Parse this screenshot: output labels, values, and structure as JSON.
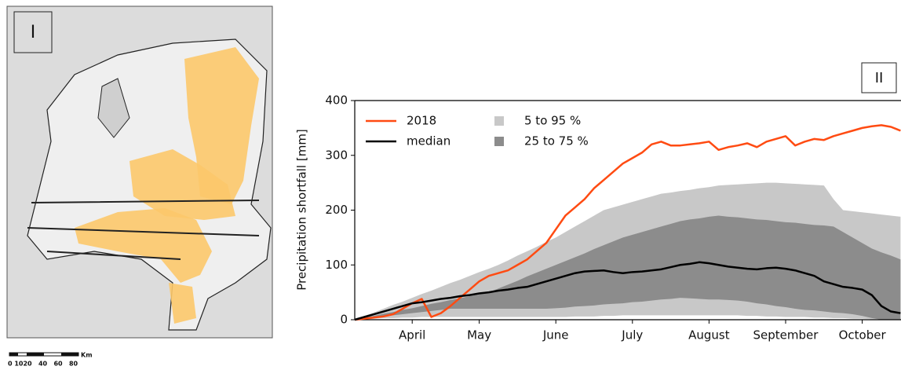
{
  "panel_labels": [
    "I",
    "II"
  ],
  "map": {
    "scale_unit": "Km",
    "scale_numbers": "0 1020   40   60   80"
  },
  "chart_data": {
    "type": "line",
    "ylabel": "Precipitation shortfall [mm]",
    "categories": [
      null,
      null,
      null,
      null,
      null,
      null,
      "April",
      null,
      null,
      null,
      null,
      null,
      null,
      "May",
      null,
      null,
      null,
      null,
      null,
      null,
      null,
      "June",
      null,
      null,
      null,
      null,
      null,
      null,
      null,
      "July",
      null,
      null,
      null,
      null,
      null,
      null,
      null,
      "August",
      null,
      null,
      null,
      null,
      null,
      null,
      null,
      "September",
      null,
      null,
      null,
      null,
      null,
      null,
      null,
      "October",
      null,
      null,
      null,
      null
    ],
    "ylim": [
      0,
      400
    ],
    "yticks": [
      0,
      100,
      200,
      300,
      400
    ],
    "legend": "upper left",
    "series": [
      {
        "name": "2018",
        "color": "#ff4b12",
        "values": [
          0,
          2,
          4,
          6,
          10,
          20,
          30,
          38,
          5,
          12,
          25,
          40,
          55,
          70,
          80,
          85,
          90,
          100,
          110,
          125,
          140,
          165,
          190,
          205,
          220,
          240,
          255,
          270,
          285,
          295,
          305,
          320,
          325,
          318,
          318,
          320,
          322,
          325,
          310,
          315,
          318,
          322,
          315,
          325,
          330,
          335,
          318,
          325,
          330,
          328,
          335,
          340,
          345,
          350,
          353,
          355,
          352,
          345
        ]
      },
      {
        "name": "median",
        "color": "#000000",
        "values": [
          0,
          5,
          10,
          15,
          20,
          25,
          30,
          32,
          35,
          38,
          40,
          43,
          45,
          48,
          50,
          53,
          55,
          58,
          60,
          65,
          70,
          75,
          80,
          85,
          88,
          89,
          90,
          87,
          85,
          87,
          88,
          90,
          92,
          96,
          100,
          102,
          105,
          103,
          100,
          97,
          95,
          93,
          92,
          94,
          95,
          93,
          90,
          85,
          80,
          70,
          65,
          60,
          58,
          55,
          45,
          25,
          15,
          12
        ]
      }
    ],
    "bands": [
      {
        "name": "5 to 95 %",
        "color": "#c8c8c8",
        "lower": [
          0,
          1,
          2,
          3,
          3,
          4,
          4,
          5,
          5,
          5,
          5,
          5,
          5,
          5,
          5,
          5,
          5,
          5,
          5,
          5,
          5,
          5,
          5,
          6,
          6,
          6,
          7,
          7,
          8,
          8,
          8,
          8,
          8,
          8,
          8,
          8,
          8,
          8,
          8,
          8,
          8,
          7,
          7,
          6,
          6,
          5,
          5,
          5,
          4,
          4,
          3,
          3,
          2,
          2,
          1,
          1,
          0,
          0
        ],
        "upper": [
          0,
          7,
          13,
          20,
          27,
          33,
          40,
          47,
          53,
          60,
          67,
          73,
          80,
          87,
          93,
          100,
          108,
          117,
          125,
          133,
          142,
          150,
          160,
          170,
          180,
          190,
          200,
          205,
          210,
          215,
          220,
          225,
          230,
          232,
          235,
          237,
          240,
          242,
          245,
          246,
          247,
          248,
          249,
          250,
          250,
          249,
          248,
          247,
          246,
          245,
          220,
          200,
          198,
          196,
          194,
          192,
          190,
          188
        ]
      },
      {
        "name": "25 to 75 %",
        "color": "#8c8c8c",
        "lower": [
          0,
          2,
          4,
          6,
          8,
          10,
          12,
          14,
          16,
          18,
          20,
          20,
          20,
          20,
          20,
          20,
          20,
          20,
          20,
          20,
          20,
          21,
          22,
          24,
          25,
          26,
          28,
          29,
          30,
          32,
          33,
          35,
          37,
          38,
          40,
          39,
          38,
          37,
          37,
          36,
          35,
          33,
          30,
          28,
          25,
          23,
          20,
          18,
          17,
          15,
          13,
          12,
          10,
          7,
          3,
          0,
          0,
          0
        ],
        "upper": [
          0,
          4,
          7,
          11,
          14,
          18,
          21,
          25,
          29,
          32,
          36,
          39,
          43,
          46,
          50,
          57,
          64,
          71,
          79,
          86,
          93,
          100,
          107,
          114,
          121,
          129,
          136,
          143,
          150,
          155,
          160,
          165,
          170,
          175,
          180,
          183,
          185,
          188,
          190,
          188,
          187,
          185,
          183,
          182,
          180,
          178,
          177,
          175,
          173,
          172,
          170,
          160,
          150,
          140,
          130,
          123,
          117,
          110
        ]
      }
    ]
  }
}
